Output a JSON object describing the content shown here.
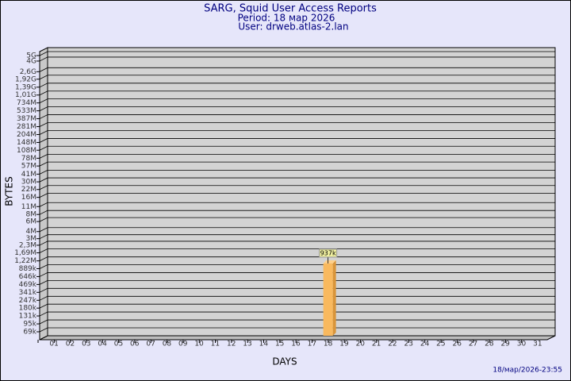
{
  "chart_data": {
    "type": "bar",
    "title": "SARG, Squid User Access Reports",
    "subtitle": "Period: 18 мар 2026",
    "user": "User: drweb.atlas-2.lan",
    "y_label": "BYTES",
    "x_label": "DAYS",
    "footer": "18/мар/2026-23:55",
    "log_scale": true,
    "grid": true,
    "color": "#f9b95e",
    "categories": [
      "01",
      "02",
      "03",
      "04",
      "05",
      "06",
      "07",
      "08",
      "09",
      "10",
      "11",
      "12",
      "13",
      "14",
      "15",
      "16",
      "17",
      "18",
      "19",
      "20",
      "21",
      "22",
      "23",
      "24",
      "25",
      "26",
      "27",
      "28",
      "29",
      "30",
      "31"
    ],
    "values": [
      null,
      null,
      null,
      null,
      null,
      null,
      null,
      null,
      null,
      null,
      null,
      null,
      null,
      null,
      null,
      null,
      null,
      937000,
      null,
      null,
      null,
      null,
      null,
      null,
      null,
      null,
      null,
      null,
      null,
      null,
      null
    ],
    "value_labels": [
      null,
      null,
      null,
      null,
      null,
      null,
      null,
      null,
      null,
      null,
      null,
      null,
      null,
      null,
      null,
      null,
      null,
      "937k",
      null,
      null,
      null,
      null,
      null,
      null,
      null,
      null,
      null,
      null,
      null,
      null,
      null
    ],
    "ylim": [
      50000,
      5000000000
    ],
    "yticks": [
      {
        "value": 5000000000,
        "label": "5G"
      },
      {
        "value": 4000000000,
        "label": "4G"
      },
      {
        "value": 2600000000,
        "label": "2,6G"
      },
      {
        "value": 1920000000,
        "label": "1,92G"
      },
      {
        "value": 1390000000,
        "label": "1,39G"
      },
      {
        "value": 1010000000,
        "label": "1,01G"
      },
      {
        "value": 734000000,
        "label": "734M"
      },
      {
        "value": 533000000,
        "label": "533M"
      },
      {
        "value": 387000000,
        "label": "387M"
      },
      {
        "value": 281000000,
        "label": "281M"
      },
      {
        "value": 204000000,
        "label": "204M"
      },
      {
        "value": 148000000,
        "label": "148M"
      },
      {
        "value": 108000000,
        "label": "108M"
      },
      {
        "value": 78000000,
        "label": "78M"
      },
      {
        "value": 57000000,
        "label": "57M"
      },
      {
        "value": 41000000,
        "label": "41M"
      },
      {
        "value": 30000000,
        "label": "30M"
      },
      {
        "value": 22000000,
        "label": "22M"
      },
      {
        "value": 16000000,
        "label": "16M"
      },
      {
        "value": 11000000,
        "label": "11M"
      },
      {
        "value": 8000000,
        "label": "8M"
      },
      {
        "value": 6000000,
        "label": "6M"
      },
      {
        "value": 4000000,
        "label": "4M"
      },
      {
        "value": 3000000,
        "label": "3M"
      },
      {
        "value": 2300000,
        "label": "2,3M"
      },
      {
        "value": 1690000,
        "label": "1,69M"
      },
      {
        "value": 1220000,
        "label": "1,22M"
      },
      {
        "value": 889000,
        "label": "889k"
      },
      {
        "value": 646000,
        "label": "646k"
      },
      {
        "value": 469000,
        "label": "469k"
      },
      {
        "value": 341000,
        "label": "341k"
      },
      {
        "value": 247000,
        "label": "247k"
      },
      {
        "value": 180000,
        "label": "180k"
      },
      {
        "value": 131000,
        "label": "131k"
      },
      {
        "value": 95000,
        "label": "95k"
      },
      {
        "value": 69000,
        "label": "69k"
      }
    ]
  }
}
